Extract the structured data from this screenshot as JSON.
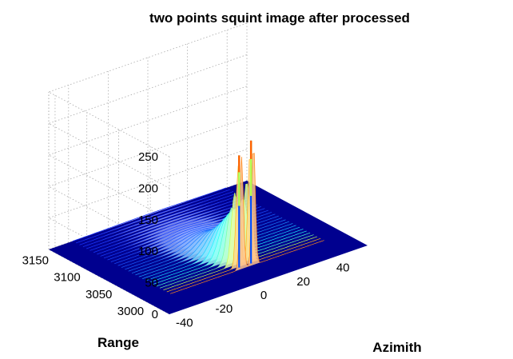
{
  "chart_data": {
    "type": "surface",
    "title": "two points squint image after processed",
    "xlabel": "Azimith",
    "ylabel": "Range",
    "zlabel": "",
    "x_ticks": [
      -40,
      -20,
      0,
      20,
      40
    ],
    "y_ticks": [
      3000,
      3050,
      3100,
      3150
    ],
    "z_ticks": [
      0,
      50,
      100,
      150,
      200,
      250
    ],
    "xlim": [
      -50,
      50
    ],
    "ylim": [
      2970,
      3160
    ],
    "zlim": [
      0,
      250
    ],
    "grid": true,
    "colormap": "jet",
    "peaks": [
      {
        "x": -2,
        "y": 3010,
        "z": 178
      },
      {
        "x": 4,
        "y": 3010,
        "z": 195
      }
    ],
    "colors": {
      "floor": "#00008f",
      "grid": "#aaaaaa"
    }
  }
}
